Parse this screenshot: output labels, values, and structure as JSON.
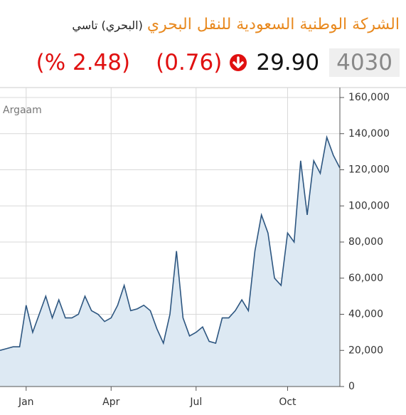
{
  "header": {
    "company_name": "الشركة الوطنية السعودية للنقل البحري",
    "short_name": "(البحري) تاسي"
  },
  "quote": {
    "symbol": "4030",
    "price": "29.90",
    "change": "(0.76)",
    "change_percent": "(% 2.48)"
  },
  "chart_data": {
    "type": "area",
    "source": "Argaam",
    "categories": [
      null,
      null,
      null,
      null,
      "Jan",
      null,
      null,
      null,
      null,
      null,
      null,
      null,
      null,
      null,
      null,
      null,
      null,
      "Apr",
      null,
      null,
      null,
      null,
      null,
      null,
      null,
      null,
      null,
      null,
      null,
      null,
      "Jul",
      null,
      null,
      null,
      null,
      null,
      null,
      null,
      null,
      null,
      null,
      null,
      null,
      null,
      "Oct",
      null,
      null,
      null,
      null,
      null,
      null,
      null,
      null
    ],
    "series": [
      {
        "color": "#2d5680",
        "values": [
          20000,
          21000,
          22000,
          22000,
          45000,
          30000,
          40000,
          50000,
          38000,
          48000,
          38000,
          38000,
          40000,
          50000,
          42000,
          40000,
          36000,
          38000,
          45000,
          56000,
          42000,
          43000,
          45000,
          42000,
          32000,
          24000,
          40000,
          75000,
          38000,
          28000,
          30000,
          33000,
          25000,
          24000,
          38000,
          38000,
          42000,
          48000,
          42000,
          75000,
          95000,
          85000,
          60000,
          56000,
          85000,
          80000,
          125000,
          95000,
          125000,
          118000,
          138000,
          128000,
          121000
        ]
      }
    ],
    "ylim": [
      0,
      160000
    ],
    "yticks": [
      0,
      {
        "value": 20000,
        "label": "20,000"
      },
      {
        "value": 40000,
        "label": "40,000"
      },
      {
        "value": 60000,
        "label": "60,000"
      },
      {
        "value": 80000,
        "label": "80,000"
      },
      {
        "value": 100000,
        "label": "100,000"
      },
      {
        "value": 120000,
        "label": "120,000"
      },
      {
        "value": 140000,
        "label": "140,000"
      },
      {
        "value": 160000,
        "label": "160,000"
      }
    ],
    "grid": true,
    "fill": "#dde9f3"
  }
}
